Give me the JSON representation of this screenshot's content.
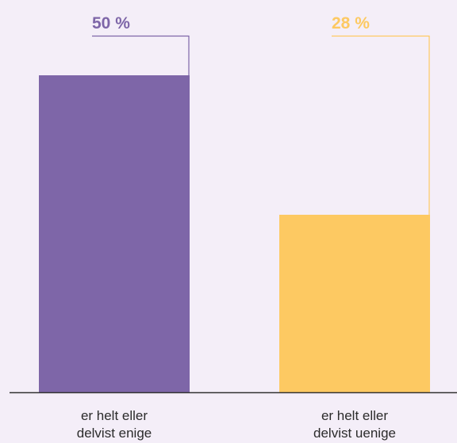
{
  "chart_data": {
    "type": "bar",
    "categories": [
      [
        "er helt eller",
        "delvist enige"
      ],
      [
        "er helt eller",
        "delvist uenige"
      ]
    ],
    "values": [
      50,
      28
    ],
    "value_labels": [
      "50 %",
      "28 %"
    ],
    "colors": [
      "#7e66a8",
      "#fdc962"
    ],
    "label_colors": [
      "#7e66a8",
      "#fdc962"
    ],
    "ylim": [
      0,
      55
    ],
    "axis_color": "#333333",
    "background": "#f4eef8",
    "title": "",
    "xlabel": "",
    "ylabel": "",
    "grid": false
  }
}
